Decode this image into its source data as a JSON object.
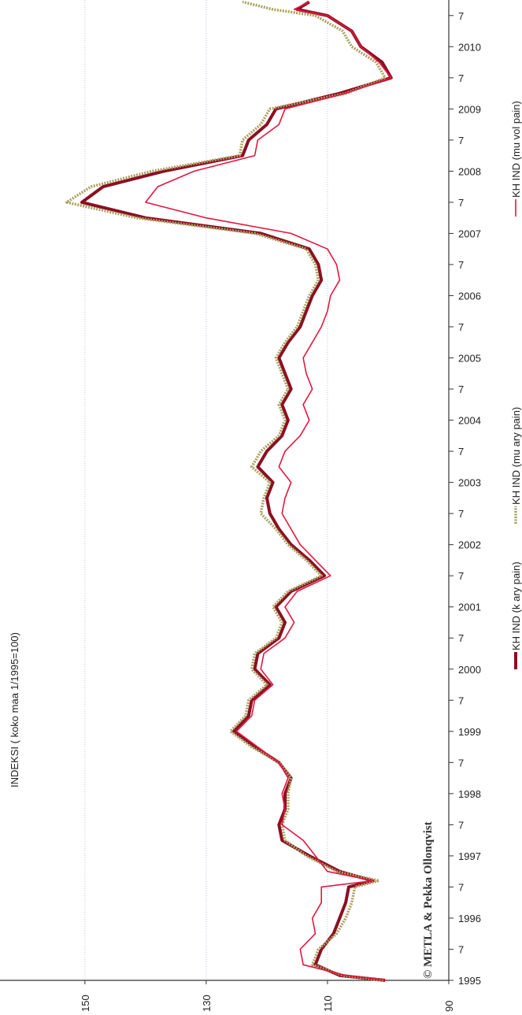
{
  "chart_data": {
    "type": "line",
    "title": "INDEKSI ( koko maa 1/1995=100)",
    "annotation": "© METLA & Pekka Ollonqvist",
    "orientation": "rotated",
    "grid": true,
    "legend": "right",
    "xlim": [
      1995,
      2010.75
    ],
    "ylim": [
      90,
      164
    ],
    "yticks": [
      90,
      110,
      130,
      150
    ],
    "xticks": [
      1995,
      {
        "value": 1995.5,
        "label": "7"
      },
      1996,
      {
        "value": 1996.5,
        "label": "7"
      },
      1997,
      {
        "value": 1997.5,
        "label": "7"
      },
      1998,
      {
        "value": 1998.5,
        "label": "7"
      },
      1999,
      {
        "value": 1999.5,
        "label": "7"
      },
      2000,
      {
        "value": 2000.5,
        "label": "7"
      },
      2001,
      {
        "value": 2001.5,
        "label": "7"
      },
      2002,
      {
        "value": 2002.5,
        "label": "7"
      },
      2003,
      {
        "value": 2003.5,
        "label": "7"
      },
      2004,
      {
        "value": 2004.5,
        "label": "7"
      },
      2005,
      {
        "value": 2005.5,
        "label": "7"
      },
      2006,
      {
        "value": 2006.5,
        "label": "7"
      },
      2007,
      {
        "value": 2007.5,
        "label": "7"
      },
      2008,
      {
        "value": 2008.5,
        "label": "7"
      },
      2009,
      {
        "value": 2009.5,
        "label": "7"
      },
      2010,
      {
        "value": 2010.5,
        "label": "7"
      }
    ],
    "x": [
      1995,
      1995.08,
      1995.25,
      1995.5,
      1995.75,
      1996,
      1996.25,
      1996.5,
      1996.6,
      1996.75,
      1997,
      1997.25,
      1997.5,
      1997.75,
      1998,
      1998.25,
      1998.5,
      1998.75,
      1999,
      1999.25,
      1999.5,
      1999.75,
      2000,
      2000.25,
      2000.5,
      2000.75,
      2001,
      2001.25,
      2001.5,
      2001.75,
      2002,
      2002.25,
      2002.5,
      2002.75,
      2003,
      2003.25,
      2003.5,
      2003.75,
      2004,
      2004.25,
      2004.5,
      2004.75,
      2005,
      2005.25,
      2005.5,
      2005.75,
      2006,
      2006.25,
      2006.5,
      2006.75,
      2007,
      2007.25,
      2007.5,
      2007.75,
      2008,
      2008.25,
      2008.5,
      2008.75,
      2009,
      2009.25,
      2009.5,
      2009.75,
      2010,
      2010.25,
      2010.5,
      2010.6,
      2010.72
    ],
    "series": [
      {
        "name": "KH IND (k ary pain)",
        "color": "#8c0f22",
        "style": "solid",
        "width": 4,
        "values": [
          100.5,
          108,
          112,
          111,
          109,
          108,
          107,
          106.5,
          102.5,
          108,
          113,
          117.5,
          118,
          117,
          117,
          116,
          118,
          122,
          125.5,
          123,
          122.5,
          119.5,
          122,
          121.5,
          118,
          117,
          118.5,
          116,
          110.5,
          113,
          116,
          118,
          119.5,
          120,
          119,
          121.5,
          120,
          117.5,
          116.5,
          117.5,
          116,
          117,
          118,
          116.5,
          114.5,
          113.5,
          112.5,
          111,
          111.5,
          113,
          121,
          140,
          150.5,
          147,
          137,
          124,
          123,
          120,
          118.5,
          108,
          99.5,
          101,
          104.5,
          106,
          110,
          115,
          113
        ]
      },
      {
        "name": "KH IND (mu ary pain)",
        "color": "#a9a060",
        "style": "dotted",
        "width": 3.5,
        "values": [
          100.8,
          107.5,
          112.5,
          111.5,
          108.5,
          107,
          106,
          105.5,
          101.5,
          108.5,
          113.5,
          117,
          117.5,
          116.5,
          116.5,
          116,
          118,
          122.5,
          126,
          123.5,
          123,
          120,
          122.5,
          122,
          118.5,
          117.5,
          119,
          116.5,
          111,
          113.5,
          116.5,
          118.5,
          121,
          120.5,
          119.5,
          122.5,
          121,
          118,
          117,
          118,
          116.5,
          117.5,
          118.5,
          117,
          115,
          114,
          113,
          111.5,
          112,
          113.5,
          122,
          141.5,
          153,
          149,
          139,
          124.5,
          124,
          121,
          119.5,
          107,
          100.5,
          102,
          106,
          107.5,
          112,
          119,
          124
        ]
      },
      {
        "name": "KH IND (mu vol pain)",
        "color": "#e3173f",
        "style": "solid",
        "width": 1.6,
        "values": [
          100.2,
          107,
          114,
          114.5,
          112,
          112.5,
          111,
          111,
          102.5,
          110,
          112,
          114,
          117.5,
          117,
          117.5,
          116.5,
          118,
          121.5,
          125,
          122.5,
          122,
          119,
          121,
          120.5,
          117,
          115.5,
          117,
          115,
          109.5,
          112,
          114.5,
          116,
          117.5,
          117,
          116,
          118,
          117,
          114.5,
          113,
          114,
          112.5,
          113.5,
          114,
          112.5,
          111,
          110,
          109.5,
          108,
          108.5,
          110,
          116,
          130,
          140,
          138,
          132,
          122,
          121.5,
          118,
          117,
          107,
          99.5,
          101.5,
          104.5,
          106,
          110,
          115.5,
          113
        ]
      }
    ]
  }
}
